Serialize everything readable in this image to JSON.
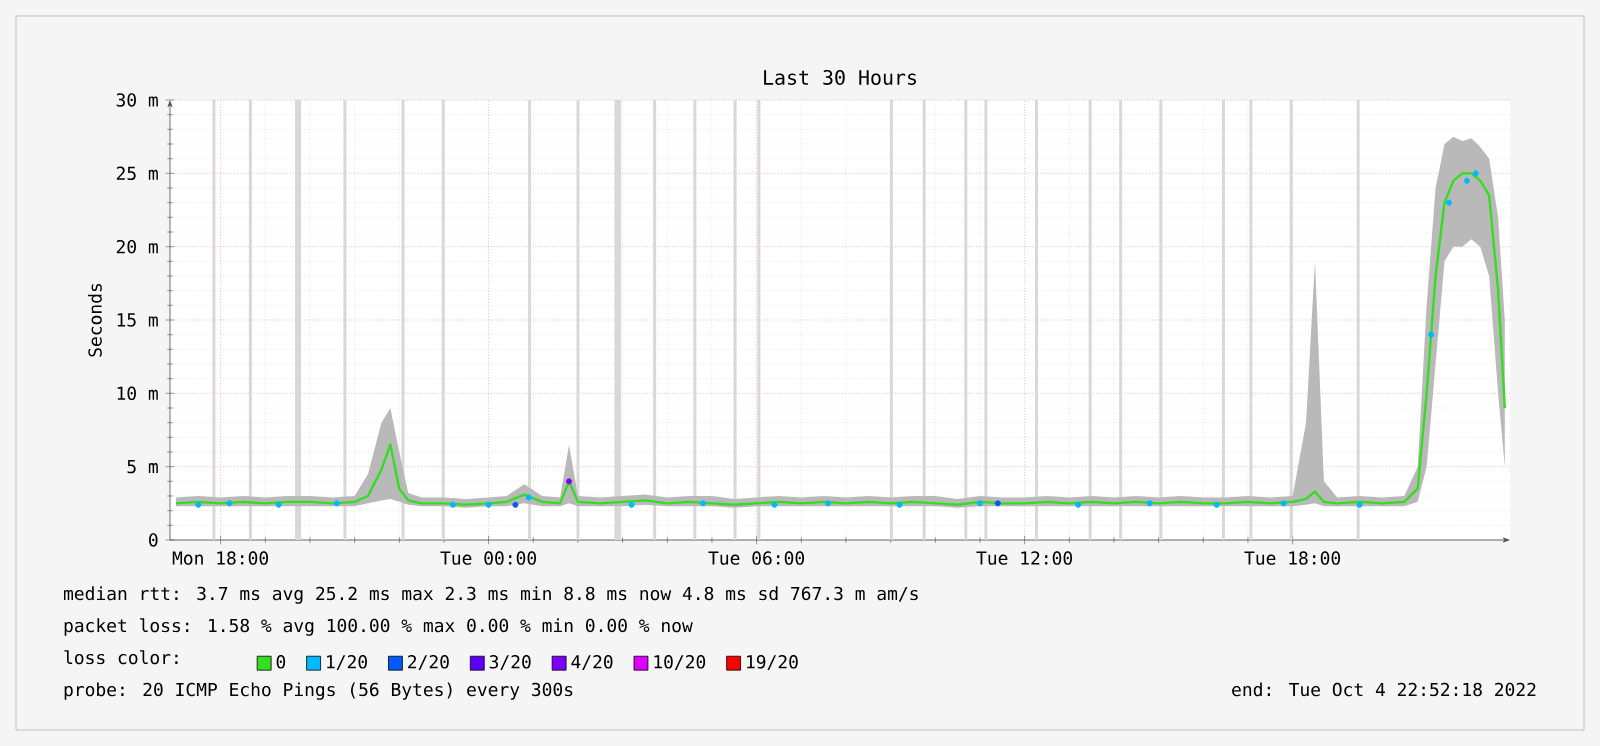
{
  "chart_data": {
    "type": "line",
    "title": "Last 30 Hours",
    "ylabel": "Seconds",
    "xlim": [
      "2022-10-03T16:52",
      "2022-10-04T22:52"
    ],
    "xticks": [
      {
        "value": "2022-10-03T18:00",
        "label": "Mon 18:00"
      },
      {
        "value": "2022-10-04T00:00",
        "label": "Tue 00:00"
      },
      {
        "value": "2022-10-04T06:00",
        "label": "Tue 06:00"
      },
      {
        "value": "2022-10-04T12:00",
        "label": "Tue 12:00"
      },
      {
        "value": "2022-10-04T18:00",
        "label": "Tue 18:00"
      }
    ],
    "ylim": [
      0,
      30
    ],
    "yticks": [
      {
        "value": 0,
        "label": "0"
      },
      {
        "value": 5,
        "label": "5 m"
      },
      {
        "value": 10,
        "label": "10 m"
      },
      {
        "value": 15,
        "label": "15 m"
      },
      {
        "value": 20,
        "label": "20 m"
      },
      {
        "value": 25,
        "label": "25 m"
      },
      {
        "value": 30,
        "label": "30 m"
      }
    ],
    "grid": true,
    "legend": "bottom",
    "legend_title": "loss color:",
    "series": [
      {
        "name": "0",
        "color": "#33dd22",
        "x": [
          "2022-10-03T17:00",
          "2022-10-03T17:30",
          "2022-10-03T18:00",
          "2022-10-03T18:30",
          "2022-10-03T19:00",
          "2022-10-03T19:30",
          "2022-10-03T20:00",
          "2022-10-03T20:30",
          "2022-10-03T21:00",
          "2022-10-03T21:18",
          "2022-10-03T21:36",
          "2022-10-03T21:48",
          "2022-10-03T22:00",
          "2022-10-03T22:12",
          "2022-10-03T22:30",
          "2022-10-03T23:00",
          "2022-10-03T23:30",
          "2022-10-04T00:00",
          "2022-10-04T00:24",
          "2022-10-04T00:48",
          "2022-10-04T01:12",
          "2022-10-04T01:36",
          "2022-10-04T01:48",
          "2022-10-04T02:00",
          "2022-10-04T02:30",
          "2022-10-04T03:00",
          "2022-10-04T03:30",
          "2022-10-04T04:00",
          "2022-10-04T04:30",
          "2022-10-04T05:00",
          "2022-10-04T05:30",
          "2022-10-04T06:00",
          "2022-10-04T06:30",
          "2022-10-04T07:00",
          "2022-10-04T07:30",
          "2022-10-04T08:00",
          "2022-10-04T08:30",
          "2022-10-04T09:00",
          "2022-10-04T09:30",
          "2022-10-04T10:00",
          "2022-10-04T10:30",
          "2022-10-04T11:00",
          "2022-10-04T11:30",
          "2022-10-04T12:00",
          "2022-10-04T12:30",
          "2022-10-04T13:00",
          "2022-10-04T13:30",
          "2022-10-04T14:00",
          "2022-10-04T14:30",
          "2022-10-04T15:00",
          "2022-10-04T15:30",
          "2022-10-04T16:00",
          "2022-10-04T16:30",
          "2022-10-04T17:00",
          "2022-10-04T17:30",
          "2022-10-04T18:00",
          "2022-10-04T18:18",
          "2022-10-04T18:30",
          "2022-10-04T18:42",
          "2022-10-04T19:00",
          "2022-10-04T19:30",
          "2022-10-04T20:00",
          "2022-10-04T20:30",
          "2022-10-04T20:48",
          "2022-10-04T21:00",
          "2022-10-04T21:12",
          "2022-10-04T21:24",
          "2022-10-04T21:36",
          "2022-10-04T21:48",
          "2022-10-04T22:00",
          "2022-10-04T22:12",
          "2022-10-04T22:24",
          "2022-10-04T22:36",
          "2022-10-04T22:45"
        ],
        "values": [
          2.5,
          2.6,
          2.5,
          2.6,
          2.5,
          2.6,
          2.6,
          2.5,
          2.6,
          3.0,
          4.8,
          6.5,
          3.5,
          2.7,
          2.5,
          2.5,
          2.4,
          2.5,
          2.6,
          3.1,
          2.6,
          2.5,
          4.0,
          2.6,
          2.5,
          2.6,
          2.7,
          2.5,
          2.6,
          2.5,
          2.4,
          2.5,
          2.6,
          2.5,
          2.6,
          2.5,
          2.6,
          2.5,
          2.6,
          2.5,
          2.4,
          2.6,
          2.5,
          2.5,
          2.6,
          2.5,
          2.6,
          2.5,
          2.6,
          2.5,
          2.6,
          2.5,
          2.5,
          2.6,
          2.5,
          2.6,
          2.8,
          3.3,
          2.6,
          2.5,
          2.6,
          2.5,
          2.6,
          3.5,
          10,
          18,
          23,
          24.5,
          25,
          25,
          24.5,
          23.5,
          17,
          9
        ],
        "lower": [
          2.3,
          2.3,
          2.3,
          2.3,
          2.3,
          2.3,
          2.3,
          2.3,
          2.3,
          2.5,
          2.7,
          2.8,
          2.6,
          2.4,
          2.3,
          2.3,
          2.2,
          2.3,
          2.3,
          2.5,
          2.3,
          2.3,
          2.5,
          2.3,
          2.3,
          2.3,
          2.4,
          2.3,
          2.3,
          2.3,
          2.2,
          2.3,
          2.3,
          2.3,
          2.3,
          2.3,
          2.3,
          2.3,
          2.3,
          2.3,
          2.2,
          2.3,
          2.3,
          2.3,
          2.3,
          2.3,
          2.3,
          2.3,
          2.3,
          2.3,
          2.3,
          2.3,
          2.3,
          2.3,
          2.3,
          2.3,
          2.4,
          2.5,
          2.3,
          2.3,
          2.3,
          2.3,
          2.3,
          2.6,
          5,
          12,
          19,
          20,
          20,
          20.5,
          20,
          18,
          10,
          5
        ],
        "upper": [
          2.9,
          3.0,
          2.9,
          3.0,
          2.9,
          3.0,
          3.0,
          2.9,
          3.0,
          4.5,
          8.0,
          9.0,
          6.0,
          3.2,
          2.9,
          2.9,
          2.8,
          2.9,
          3.0,
          3.8,
          3.0,
          2.9,
          6.5,
          3.0,
          2.9,
          3.0,
          3.1,
          2.9,
          3.0,
          3.0,
          2.8,
          2.9,
          3.0,
          2.9,
          3.0,
          2.9,
          3.0,
          2.9,
          3.0,
          3.0,
          2.8,
          3.0,
          2.9,
          2.9,
          3.0,
          2.9,
          3.0,
          2.9,
          3.0,
          2.9,
          3.0,
          2.9,
          2.9,
          3.0,
          2.9,
          3.0,
          8.0,
          19.0,
          4.0,
          2.9,
          3.0,
          2.9,
          3.0,
          5.0,
          16,
          24,
          27,
          27.5,
          27.2,
          27.4,
          26.8,
          26,
          22,
          15
        ]
      },
      {
        "name": "1/20",
        "type": "scatter",
        "color": "#00b8ff",
        "x": [
          "2022-10-03T17:30",
          "2022-10-03T18:12",
          "2022-10-03T19:18",
          "2022-10-03T20:36",
          "2022-10-03T23:12",
          "2022-10-04T00:00",
          "2022-10-04T00:54",
          "2022-10-04T03:12",
          "2022-10-04T04:48",
          "2022-10-04T06:24",
          "2022-10-04T07:36",
          "2022-10-04T09:12",
          "2022-10-04T11:00",
          "2022-10-04T13:12",
          "2022-10-04T14:48",
          "2022-10-04T16:18",
          "2022-10-04T17:48",
          "2022-10-04T19:30",
          "2022-10-04T21:06",
          "2022-10-04T21:30",
          "2022-10-04T21:54",
          "2022-10-04T22:06"
        ],
        "values": [
          2.4,
          2.5,
          2.4,
          2.5,
          2.4,
          2.4,
          2.9,
          2.4,
          2.5,
          2.4,
          2.5,
          2.4,
          2.5,
          2.4,
          2.5,
          2.4,
          2.5,
          2.4,
          14,
          23,
          24.5,
          25
        ]
      },
      {
        "name": "2/20",
        "type": "scatter",
        "color": "#0059ff",
        "x": [
          "2022-10-04T00:36",
          "2022-10-04T11:24"
        ],
        "values": [
          2.4,
          2.5
        ]
      },
      {
        "name": "3/20",
        "type": "scatter",
        "color": "#5e00ff"
      },
      {
        "name": "4/20",
        "type": "scatter",
        "color": "#7e00ff",
        "x": [
          "2022-10-04T01:48"
        ],
        "values": [
          4.0
        ]
      },
      {
        "name": "10/20",
        "type": "scatter",
        "color": "#dd00ff"
      },
      {
        "name": "19/20",
        "type": "scatter",
        "color": "#ff0000"
      }
    ],
    "bands": [
      {
        "axis": "x",
        "from": "2022-10-03T17:49",
        "to": "2022-10-03T17:53",
        "color": "#d8d8d8"
      },
      {
        "axis": "x",
        "from": "2022-10-03T18:38",
        "to": "2022-10-03T18:42",
        "color": "#d8d8d8"
      },
      {
        "axis": "x",
        "from": "2022-10-03T19:40",
        "to": "2022-10-03T19:48",
        "color": "#d8d8d8"
      },
      {
        "axis": "x",
        "from": "2022-10-03T20:45",
        "to": "2022-10-03T20:49",
        "color": "#d8d8d8"
      },
      {
        "axis": "x",
        "from": "2022-10-03T22:03",
        "to": "2022-10-03T22:07",
        "color": "#d8d8d8"
      },
      {
        "axis": "x",
        "from": "2022-10-03T22:57",
        "to": "2022-10-03T23:01",
        "color": "#d8d8d8"
      },
      {
        "axis": "x",
        "from": "2022-10-04T00:53",
        "to": "2022-10-04T00:57",
        "color": "#d8d8d8"
      },
      {
        "axis": "x",
        "from": "2022-10-04T01:58",
        "to": "2022-10-04T02:02",
        "color": "#d8d8d8"
      },
      {
        "axis": "x",
        "from": "2022-10-04T02:49",
        "to": "2022-10-04T02:58",
        "color": "#d8d8d8"
      },
      {
        "axis": "x",
        "from": "2022-10-04T03:41",
        "to": "2022-10-04T03:45",
        "color": "#d8d8d8"
      },
      {
        "axis": "x",
        "from": "2022-10-04T04:35",
        "to": "2022-10-04T04:39",
        "color": "#d8d8d8"
      },
      {
        "axis": "x",
        "from": "2022-10-04T05:29",
        "to": "2022-10-04T05:33",
        "color": "#d8d8d8"
      },
      {
        "axis": "x",
        "from": "2022-10-04T06:01",
        "to": "2022-10-04T06:05",
        "color": "#d8d8d8"
      },
      {
        "axis": "x",
        "from": "2022-10-04T08:59",
        "to": "2022-10-04T09:03",
        "color": "#d8d8d8"
      },
      {
        "axis": "x",
        "from": "2022-10-04T09:43",
        "to": "2022-10-04T09:47",
        "color": "#d8d8d8"
      },
      {
        "axis": "x",
        "from": "2022-10-04T10:39",
        "to": "2022-10-04T10:43",
        "color": "#d8d8d8"
      },
      {
        "axis": "x",
        "from": "2022-10-04T11:06",
        "to": "2022-10-04T11:10",
        "color": "#d8d8d8"
      },
      {
        "axis": "x",
        "from": "2022-10-04T12:14",
        "to": "2022-10-04T12:18",
        "color": "#d8d8d8"
      },
      {
        "axis": "x",
        "from": "2022-10-04T13:26",
        "to": "2022-10-04T13:30",
        "color": "#d8d8d8"
      },
      {
        "axis": "x",
        "from": "2022-10-04T14:07",
        "to": "2022-10-04T14:11",
        "color": "#d8d8d8"
      },
      {
        "axis": "x",
        "from": "2022-10-04T15:01",
        "to": "2022-10-04T15:05",
        "color": "#d8d8d8"
      },
      {
        "axis": "x",
        "from": "2022-10-04T16:25",
        "to": "2022-10-04T16:29",
        "color": "#d8d8d8"
      },
      {
        "axis": "x",
        "from": "2022-10-04T17:02",
        "to": "2022-10-04T17:06",
        "color": "#d8d8d8"
      },
      {
        "axis": "x",
        "from": "2022-10-04T17:56",
        "to": "2022-10-04T18:00",
        "color": "#d8d8d8"
      },
      {
        "axis": "x",
        "from": "2022-10-04T19:26",
        "to": "2022-10-04T19:30",
        "color": "#d8d8d8"
      }
    ],
    "annotations": [
      "median rtt:  3.7 ms avg  25.2 ms max  2.3 ms min  8.8 ms now  4.8 ms sd  767.3 m am/s",
      "packet loss: 1.58 % avg  100.00 % max  0.00 % min  0.00 % now",
      "probe:  20 ICMP Echo Pings (56 Bytes) every 300s",
      "end: Tue Oct  4 22:52:18 2022"
    ]
  }
}
